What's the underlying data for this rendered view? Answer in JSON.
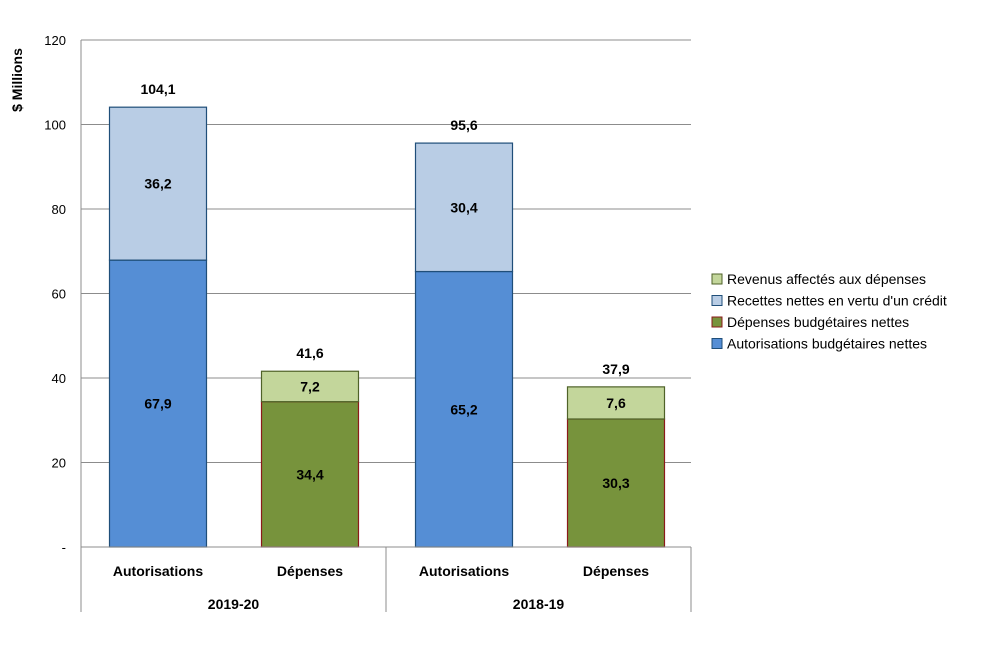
{
  "chart_data": {
    "type": "bar",
    "stacked": true,
    "ylabel": "$ Millions",
    "ylim": [
      0,
      120
    ],
    "yticks": [
      0,
      20,
      40,
      60,
      80,
      100,
      120
    ],
    "ytick_labels": [
      "-",
      "20",
      "40",
      "60",
      "80",
      "100",
      "120"
    ],
    "grid": true,
    "legend_position": "right",
    "groups": [
      {
        "label": "2019-20",
        "categories": [
          "Autorisations",
          "Dépenses"
        ]
      },
      {
        "label": "2018-19",
        "categories": [
          "Autorisations",
          "Dépenses"
        ]
      }
    ],
    "bars": [
      {
        "group": "2019-20",
        "category": "Autorisations",
        "total": 104.1,
        "total_label": "104,1",
        "segments": [
          {
            "series": "Autorisations budgétaires nettes",
            "value": 67.9,
            "label": "67,9"
          },
          {
            "series": "Recettes nettes en vertu d'un crédit",
            "value": 36.2,
            "label": "36,2"
          }
        ]
      },
      {
        "group": "2019-20",
        "category": "Dépenses",
        "total": 41.6,
        "total_label": "41,6",
        "segments": [
          {
            "series": "Dépenses budgétaires nettes",
            "value": 34.4,
            "label": "34,4"
          },
          {
            "series": "Revenus affectés aux dépenses",
            "value": 7.2,
            "label": "7,2"
          }
        ]
      },
      {
        "group": "2018-19",
        "category": "Autorisations",
        "total": 95.6,
        "total_label": "95,6",
        "segments": [
          {
            "series": "Autorisations budgétaires nettes",
            "value": 65.2,
            "label": "65,2"
          },
          {
            "series": "Recettes nettes en vertu d'un crédit",
            "value": 30.4,
            "label": "30,4"
          }
        ]
      },
      {
        "group": "2018-19",
        "category": "Dépenses",
        "total": 37.9,
        "total_label": "37,9",
        "segments": [
          {
            "series": "Dépenses budgétaires nettes",
            "value": 30.3,
            "label": "30,3"
          },
          {
            "series": "Revenus affectés aux dépenses",
            "value": 7.6,
            "label": "7,6"
          }
        ]
      }
    ],
    "series": [
      {
        "name": "Revenus affectés aux dépenses",
        "fill": "#c3d69b",
        "stroke": "#4f6228"
      },
      {
        "name": "Recettes nettes en vertu d'un crédit",
        "fill": "#b9cde5",
        "stroke": "#1f4e79"
      },
      {
        "name": "Dépenses budgétaires nettes",
        "fill": "#77933c",
        "stroke": "#8b1a1a"
      },
      {
        "name": "Autorisations budgétaires nettes",
        "fill": "#558ed5",
        "stroke": "#1f4e79"
      }
    ]
  }
}
